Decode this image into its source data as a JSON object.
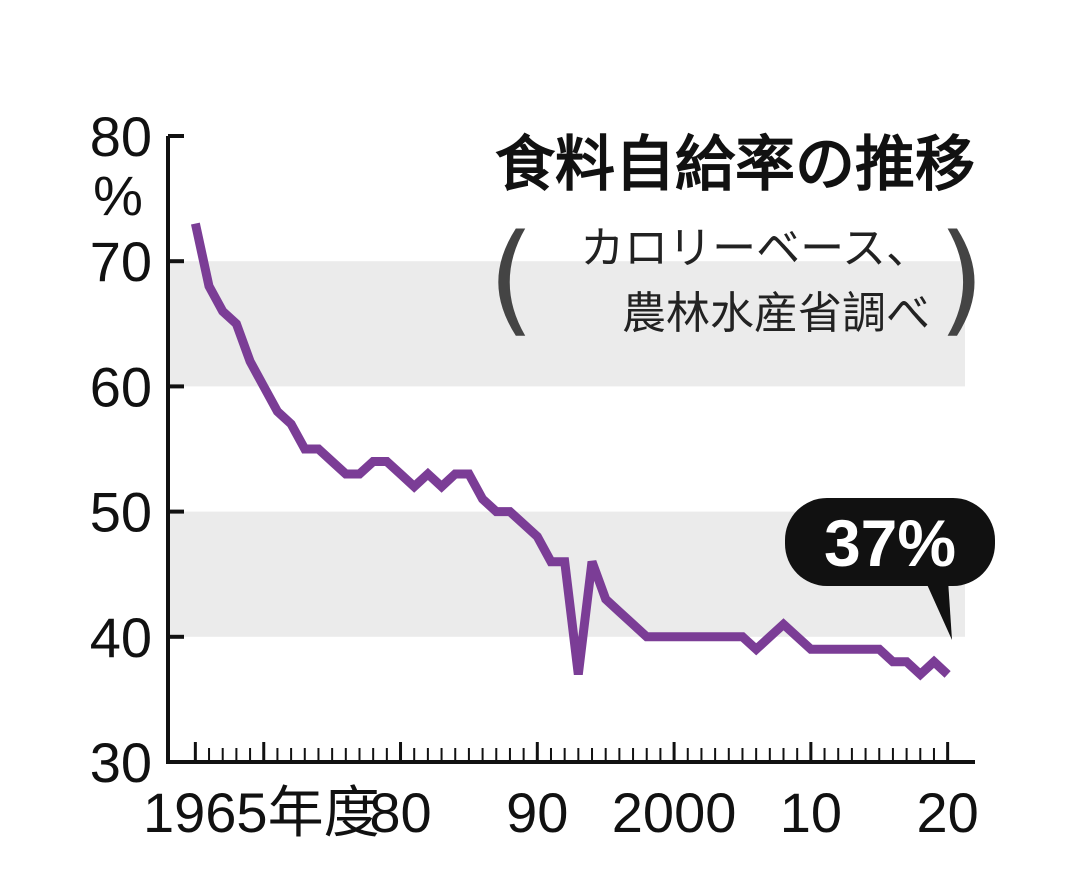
{
  "chart_data": {
    "type": "line",
    "title": "食料自給率の推移",
    "note_line1": "カロリーベース、",
    "note_line2": "農林水産省調べ",
    "yunit": "%",
    "ylim": [
      30,
      80
    ],
    "yticks": [
      "30",
      "40",
      "50",
      "60",
      "70",
      "80"
    ],
    "xlim": [
      1963,
      2022
    ],
    "xtick_labels": [
      {
        "x": 1965,
        "label": "1965年度"
      },
      {
        "x": 1980,
        "label": "80"
      },
      {
        "x": 1990,
        "label": "90"
      },
      {
        "x": 2000,
        "label": "2000"
      },
      {
        "x": 2010,
        "label": "10"
      },
      {
        "x": 2020,
        "label": "20"
      }
    ],
    "x": [
      1965,
      1966,
      1967,
      1968,
      1969,
      1970,
      1971,
      1972,
      1973,
      1974,
      1975,
      1976,
      1977,
      1978,
      1979,
      1980,
      1981,
      1982,
      1983,
      1984,
      1985,
      1986,
      1987,
      1988,
      1989,
      1990,
      1991,
      1992,
      1993,
      1994,
      1995,
      1996,
      1997,
      1998,
      1999,
      2000,
      2001,
      2002,
      2003,
      2004,
      2005,
      2006,
      2007,
      2008,
      2009,
      2010,
      2011,
      2012,
      2013,
      2014,
      2015,
      2016,
      2017,
      2018,
      2019,
      2020
    ],
    "series": [
      {
        "values": [
          73,
          68,
          66,
          65,
          62,
          60,
          58,
          57,
          55,
          55,
          54,
          53,
          53,
          54,
          54,
          53,
          52,
          53,
          52,
          53,
          53,
          51,
          50,
          50,
          49,
          48,
          46,
          46,
          37,
          46,
          43,
          42,
          41,
          40,
          40,
          40,
          40,
          40,
          40,
          40,
          40,
          39,
          40,
          41,
          40,
          39,
          39,
          39,
          39,
          39,
          39,
          38,
          38,
          37,
          38,
          37
        ]
      }
    ],
    "bands": [
      [
        40,
        50
      ],
      [
        60,
        70
      ]
    ],
    "annotation": {
      "x": 2020,
      "text": "37%"
    },
    "grid": false,
    "line_color": "#7b3d96",
    "band_color": "#ebebeb"
  }
}
